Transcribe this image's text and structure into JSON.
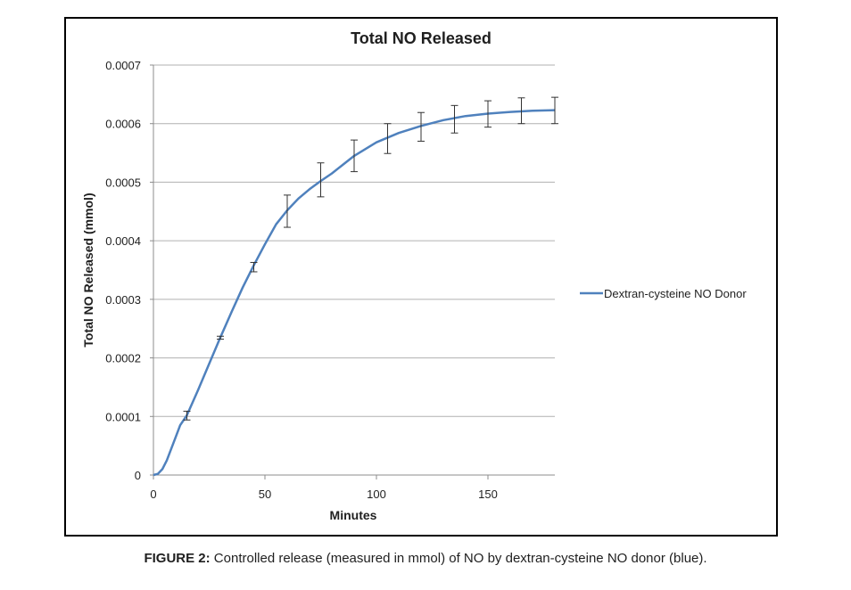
{
  "caption": {
    "label": "FIGURE 2:",
    "text": " Controlled release (measured in mmol) of NO by dextran-cysteine NO donor (blue)."
  },
  "chart_data": {
    "type": "line",
    "title": "Total NO Released",
    "xlabel": "Minutes",
    "ylabel": "Total NO Released (mmol)",
    "xlim": [
      0,
      180
    ],
    "ylim": [
      0,
      0.0007
    ],
    "xticks": [
      0,
      50,
      100,
      150
    ],
    "xtick_labels": [
      "0",
      "50",
      "100",
      "150"
    ],
    "yticks": [
      0,
      0.0001,
      0.0002,
      0.0003,
      0.0004,
      0.0005,
      0.0006,
      0.0007
    ],
    "ytick_labels": [
      "0",
      "0.0001",
      "0.0002",
      "0.0003",
      "0.0004",
      "0.0005",
      "0.0006",
      "0.0007"
    ],
    "grid": "horizontal",
    "legend_position": "right",
    "series": [
      {
        "name": "Dextran-cysteine NO Donor",
        "color": "#4f81bd",
        "x": [
          0,
          2,
          4,
          6,
          8,
          10,
          12,
          15,
          20,
          25,
          30,
          35,
          40,
          45,
          50,
          55,
          60,
          65,
          70,
          75,
          80,
          90,
          100,
          110,
          120,
          130,
          140,
          150,
          160,
          170,
          180
        ],
        "y": [
          0,
          2e-06,
          1e-05,
          2.5e-05,
          4.5e-05,
          6.5e-05,
          8.5e-05,
          0.000102,
          0.000145,
          0.00019,
          0.000235,
          0.000278,
          0.00032,
          0.000358,
          0.000394,
          0.000428,
          0.000452,
          0.000472,
          0.000488,
          0.000502,
          0.000515,
          0.000545,
          0.000568,
          0.000584,
          0.000596,
          0.000606,
          0.000613,
          0.000617,
          0.00062,
          0.000622,
          0.000623
        ],
        "error_bars": [
          {
            "x": 15,
            "low": 9.4e-05,
            "high": 0.000109
          },
          {
            "x": 30,
            "low": 0.000232,
            "high": 0.000237
          },
          {
            "x": 45,
            "low": 0.000347,
            "high": 0.000363
          },
          {
            "x": 60,
            "low": 0.000423,
            "high": 0.000478
          },
          {
            "x": 75,
            "low": 0.000475,
            "high": 0.000533
          },
          {
            "x": 90,
            "low": 0.000518,
            "high": 0.000572
          },
          {
            "x": 105,
            "low": 0.000549,
            "high": 0.0006
          },
          {
            "x": 120,
            "low": 0.00057,
            "high": 0.000619
          },
          {
            "x": 135,
            "low": 0.000584,
            "high": 0.000631
          },
          {
            "x": 150,
            "low": 0.000594,
            "high": 0.000639
          },
          {
            "x": 165,
            "low": 0.0006,
            "high": 0.000644
          },
          {
            "x": 180,
            "low": 0.0006,
            "high": 0.000645
          }
        ]
      }
    ]
  }
}
